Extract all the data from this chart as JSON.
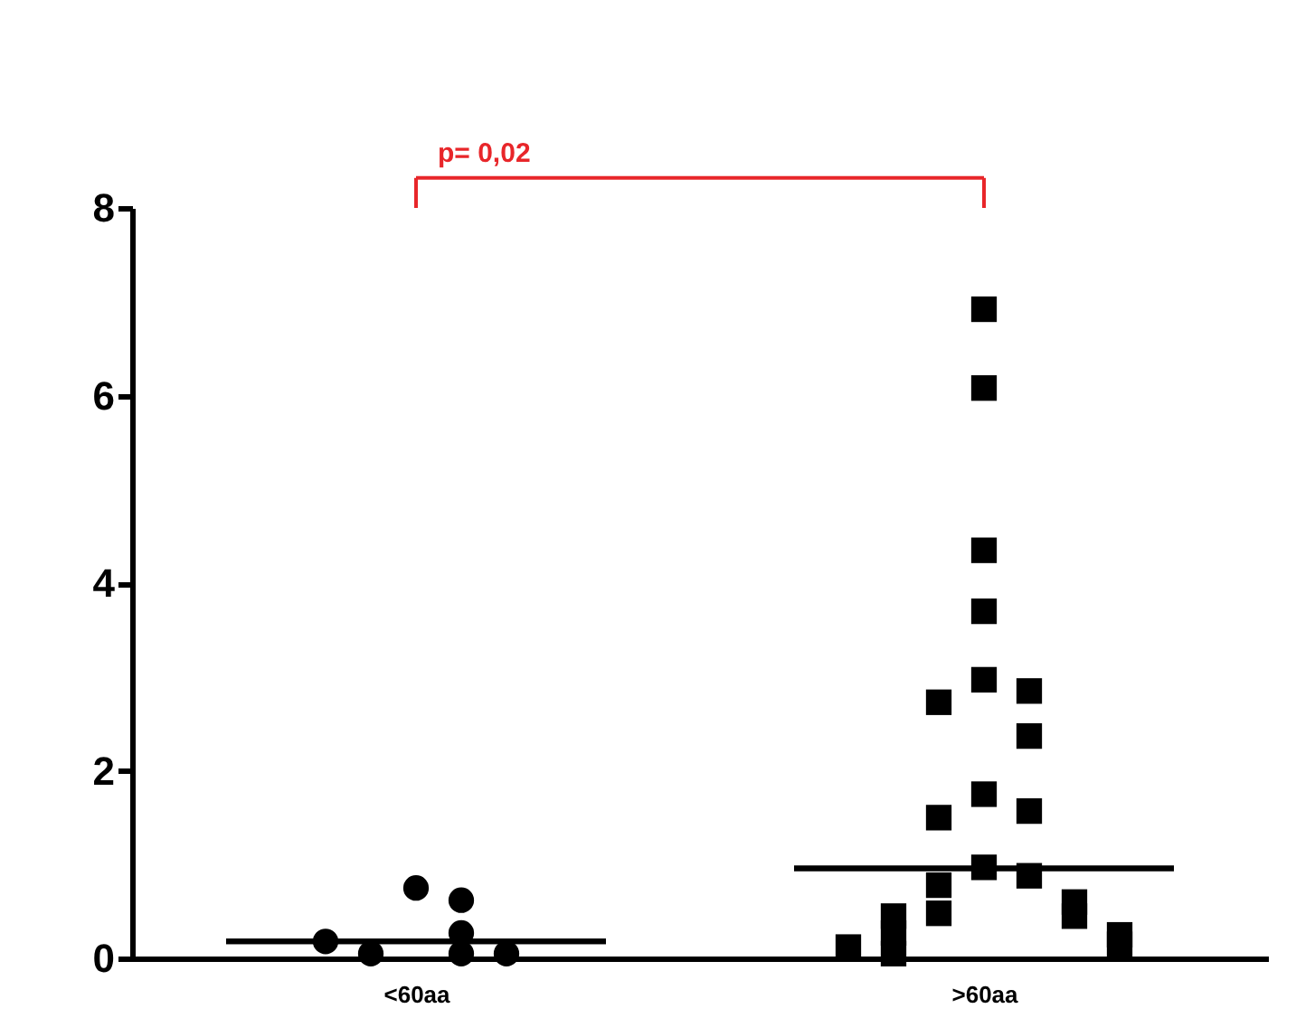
{
  "chart_data": {
    "type": "scatter",
    "categories": [
      "<60aa",
      ">60aa"
    ],
    "ylim": [
      0,
      8
    ],
    "yticks": [
      0,
      2,
      4,
      6,
      8
    ],
    "grid": false,
    "annotations": [
      "p= 0,02"
    ],
    "series": [
      {
        "marker": "circle",
        "color": "#000000",
        "x": [
          "<60aa",
          "<60aa",
          "<60aa",
          "<60aa",
          "<60aa",
          "<60aa",
          "<60aa"
        ],
        "values": [
          0.75,
          0.62,
          0.27,
          0.05,
          0.05,
          0.05,
          0.18
        ]
      },
      {
        "marker": "square",
        "color": "#000000",
        "x": [
          ">60aa",
          ">60aa",
          ">60aa",
          ">60aa",
          ">60aa",
          ">60aa",
          ">60aa",
          ">60aa",
          ">60aa",
          ">60aa",
          ">60aa",
          ">60aa",
          ">60aa",
          ">60aa",
          ">60aa",
          ">60aa",
          ">60aa",
          ">60aa",
          ">60aa",
          ">60aa",
          ">60aa",
          ">60aa",
          ">60aa"
        ],
        "values": [
          6.92,
          6.08,
          4.35,
          3.7,
          2.97,
          2.85,
          2.73,
          2.37,
          1.75,
          1.57,
          1.5,
          0.97,
          0.88,
          0.78,
          0.6,
          0.48,
          0.45,
          0.45,
          0.27,
          0.25,
          0.15,
          0.12,
          0.05
        ]
      },
      {
        "type": "box",
        "color": "#000000",
        "boxes": [
          {
            "low": 0.18,
            "q1": 0.18,
            "median": 0.18,
            "q3": 0.18,
            "high": 0.18
          },
          {
            "low": 0.96,
            "q1": 0.96,
            "median": 0.96,
            "q3": 0.96,
            "high": 0.96
          }
        ]
      }
    ]
  }
}
